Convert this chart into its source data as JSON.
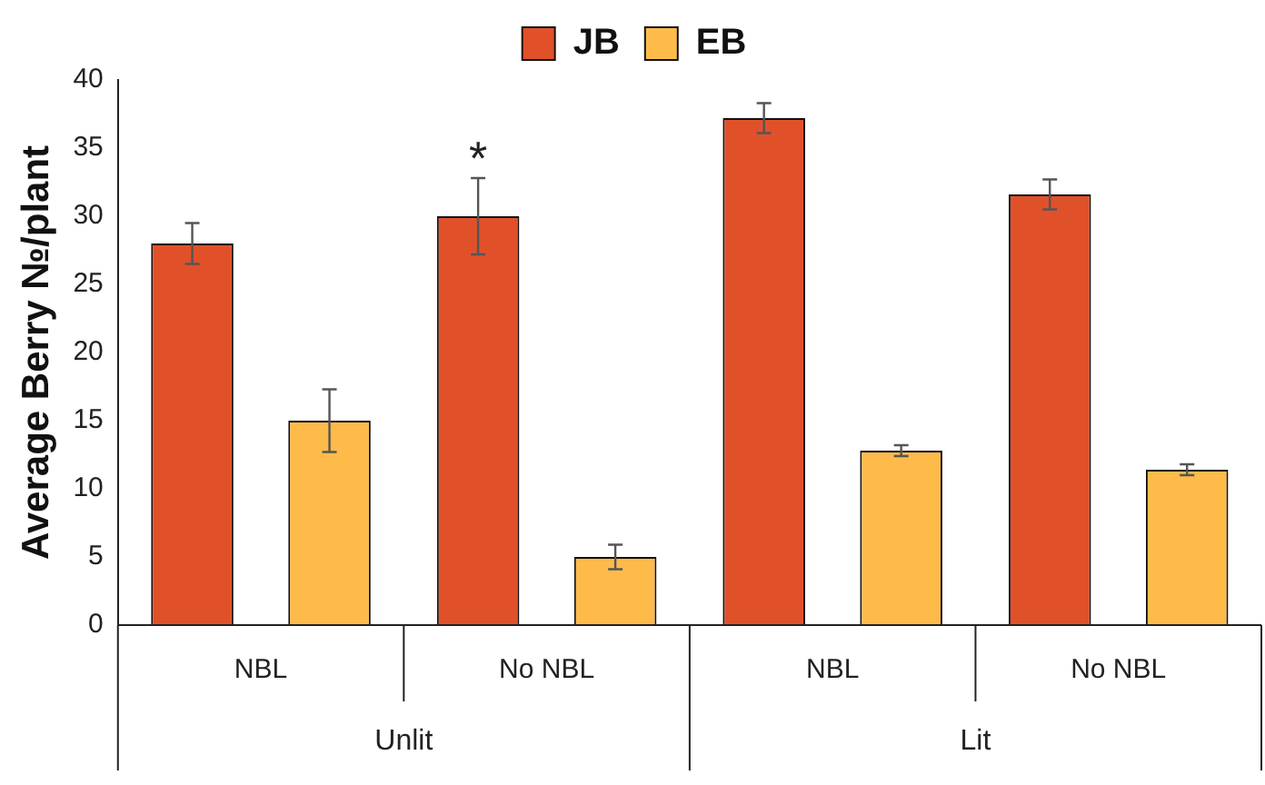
{
  "chart_data": {
    "type": "bar",
    "ylabel": "Average Berry №/plant",
    "categories": [
      "NBL",
      "No NBL",
      "NBL",
      "No NBL"
    ],
    "series": [
      {
        "name": "JB",
        "color": "#e0512a",
        "values": [
          28,
          30,
          37.2,
          31.6
        ],
        "errors": [
          1.5,
          2.8,
          1.1,
          1.1
        ]
      },
      {
        "name": "EB",
        "color": "#ffbb4a",
        "values": [
          15,
          5,
          12.8,
          11.4
        ],
        "errors": [
          2.3,
          0.9,
          0.4,
          0.4
        ]
      }
    ],
    "ylim": [
      0,
      40
    ],
    "yticks": [
      0,
      5,
      10,
      15,
      20,
      25,
      30,
      35,
      40
    ],
    "grid": false,
    "legend": "top",
    "annotations": [
      "Unlit",
      "Lit",
      "*"
    ]
  }
}
